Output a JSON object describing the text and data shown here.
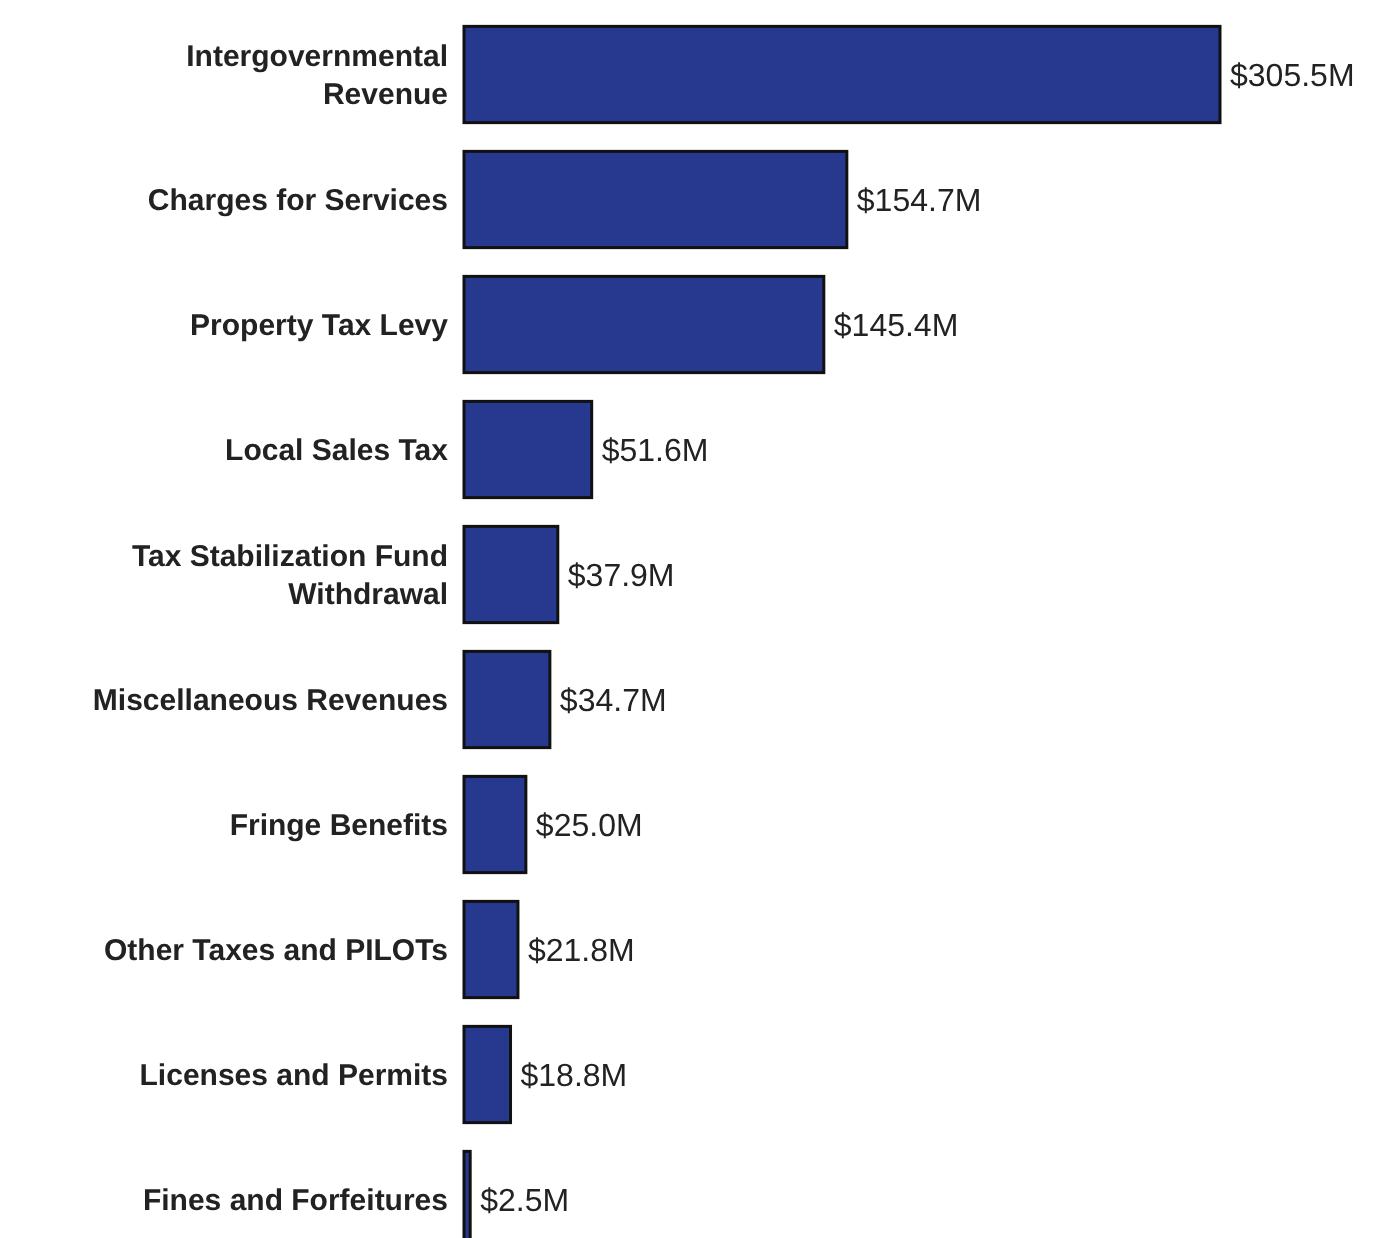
{
  "chart_data": {
    "type": "bar",
    "orientation": "horizontal",
    "color": "#27398f",
    "categories": [
      "Intergovernmental Revenue",
      "Charges for Services",
      "Property Tax Levy",
      "Local Sales Tax",
      "Tax Stabilization Fund Withdrawal",
      "Miscellaneous Revenues",
      "Fringe Benefits",
      "Other Taxes and PILOTs",
      "Licenses and Permits",
      "Fines and Forfeitures"
    ],
    "values": [
      305.5,
      154.7,
      145.4,
      51.6,
      37.9,
      34.7,
      25.0,
      21.8,
      18.8,
      2.5
    ],
    "value_labels": [
      "$305.5M",
      "$154.7M",
      "$145.4M",
      "$51.6M",
      "$37.9M",
      "$34.7M",
      "$25.0M",
      "$21.8M",
      "$18.8M",
      "$2.5M"
    ]
  }
}
